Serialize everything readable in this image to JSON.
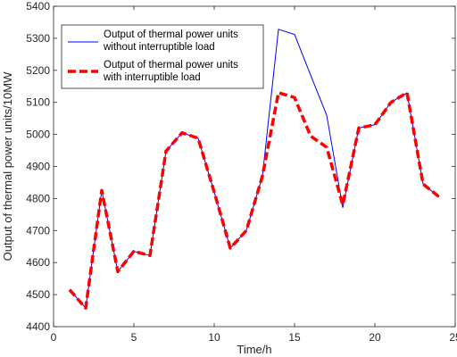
{
  "chart_data": {
    "type": "line",
    "title": "",
    "xlabel": "Time/h",
    "ylabel": "Output of thermal power units/10MW",
    "xlim": [
      0,
      25
    ],
    "ylim": [
      4400,
      5400
    ],
    "xticks": [
      0,
      5,
      10,
      15,
      20,
      25
    ],
    "yticks": [
      4400,
      4500,
      4600,
      4700,
      4800,
      4900,
      5000,
      5100,
      5200,
      5300,
      5400
    ],
    "grid": false,
    "legend_position": "top-left",
    "x": [
      1,
      2,
      3,
      4,
      5,
      6,
      7,
      8,
      9,
      10,
      11,
      12,
      13,
      14,
      15,
      16,
      17,
      18,
      19,
      20,
      21,
      22,
      23,
      24
    ],
    "series": [
      {
        "name": "Output of thermal power units without interruptible load",
        "legend_lines": [
          "Output of thermal power units",
          "without interruptible load"
        ],
        "color": "#0000ff",
        "style": "solid",
        "values": [
          4515,
          4458,
          4825,
          4572,
          4635,
          4622,
          4948,
          5005,
          4988,
          4820,
          4645,
          4700,
          4870,
          5328,
          5312,
          5185,
          5060,
          4772,
          5020,
          5030,
          5100,
          5130,
          4845,
          4805
        ]
      },
      {
        "name": "Output of thermal power units with interruptible load",
        "legend_lines": [
          "Output of thermal power units",
          "with interruptible load"
        ],
        "color": "#ff0000",
        "style": "dashed",
        "values": [
          4515,
          4458,
          4825,
          4572,
          4635,
          4622,
          4948,
          5005,
          4988,
          4820,
          4645,
          4700,
          4870,
          5130,
          5115,
          4995,
          4960,
          4780,
          5020,
          5030,
          5100,
          5130,
          4845,
          4805
        ]
      }
    ]
  }
}
